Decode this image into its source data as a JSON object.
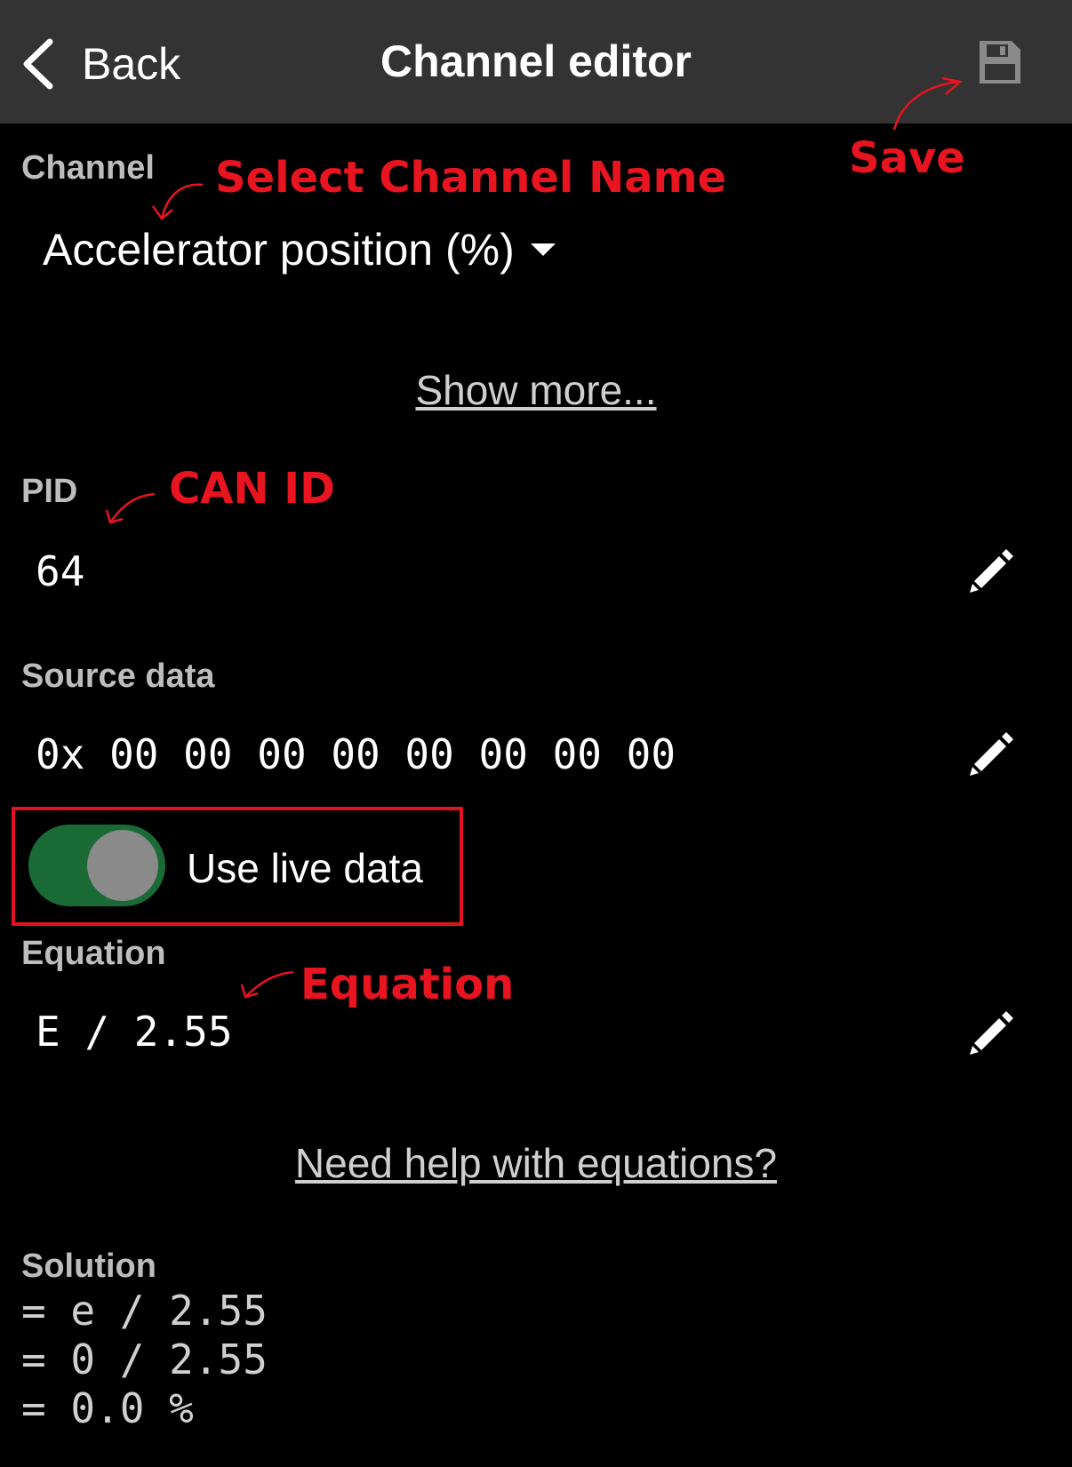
{
  "navbar": {
    "back_label": "Back",
    "title": "Channel editor",
    "save_icon": "floppy-disk-icon"
  },
  "channel": {
    "label": "Channel",
    "value": "Accelerator position (%)"
  },
  "show_more": "Show more...",
  "pid": {
    "label": "PID",
    "value": "64"
  },
  "source_data": {
    "label": "Source data",
    "value": "0x 00 00 00 00 00 00 00 00"
  },
  "live_data": {
    "label": "Use live data",
    "enabled": true
  },
  "equation": {
    "label": "Equation",
    "value": "E / 2.55"
  },
  "help_link": "Need help with equations?",
  "solution": {
    "label": "Solution",
    "lines": [
      "= e / 2.55",
      "= 0 / 2.55",
      "= 0.0 %"
    ]
  },
  "annotations": {
    "save": "Save",
    "select_channel": "Select Channel Name",
    "can_id": "CAN ID",
    "equation": "Equation"
  },
  "colors": {
    "navbar_bg": "#333333",
    "annotation": "#e8141f",
    "toggle_on": "#1a6a35"
  }
}
